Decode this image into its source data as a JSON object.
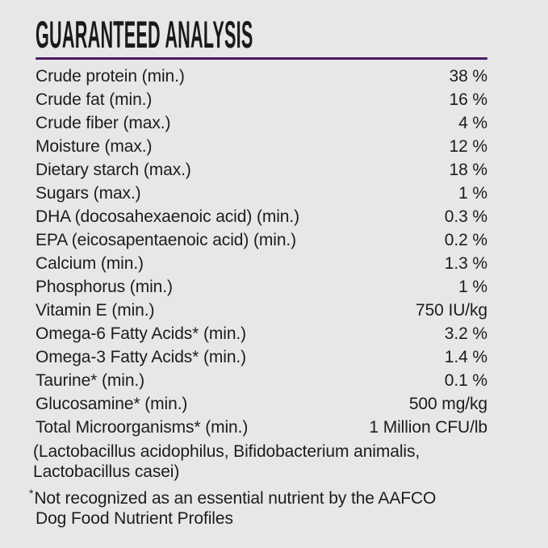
{
  "panel": {
    "title": "GUARANTEED ANALYSIS",
    "rows": [
      {
        "name": "Crude protein (min.)",
        "value": "38 %"
      },
      {
        "name": "Crude fat (min.)",
        "value": "16 %"
      },
      {
        "name": "Crude fiber (max.)",
        "value": "4 %"
      },
      {
        "name": "Moisture (max.)",
        "value": "12 %"
      },
      {
        "name": "Dietary starch (max.)",
        "value": "18 %"
      },
      {
        "name": "Sugars (max.)",
        "value": "1 %"
      },
      {
        "name": "DHA (docosahexaenoic acid) (min.)",
        "value": "0.3 %"
      },
      {
        "name": "EPA (eicosapentaenoic acid) (min.)",
        "value": "0.2 %"
      },
      {
        "name": "Calcium (min.)",
        "value": "1.3 %"
      },
      {
        "name": "Phosphorus (min.)",
        "value": "1 %"
      },
      {
        "name": "Vitamin E (min.)",
        "value": "750 IU/kg"
      },
      {
        "name": "Omega-6 Fatty Acids* (min.)",
        "value": "3.2 %"
      },
      {
        "name": "Omega-3 Fatty Acids* (min.)",
        "value": "1.4 %"
      },
      {
        "name": "Taurine* (min.)",
        "value": "0.1 %"
      },
      {
        "name": "Glucosamine* (min.)",
        "value": "500 mg/kg"
      },
      {
        "name": "Total Microorganisms* (min.)",
        "value": "1 Million CFU/lb"
      }
    ],
    "species_note": "(Lactobacillus acidophilus, Bifidobacterium animalis, Lactobacillus casei)",
    "footnote_marker": "*",
    "footnote_text": "Not recognized as an essential nutrient by the AAFCO Dog Food Nutrient Profiles"
  },
  "colors": {
    "background": "#e8e7e7",
    "text": "#1c1c1c",
    "divider": "#4c1d62"
  }
}
